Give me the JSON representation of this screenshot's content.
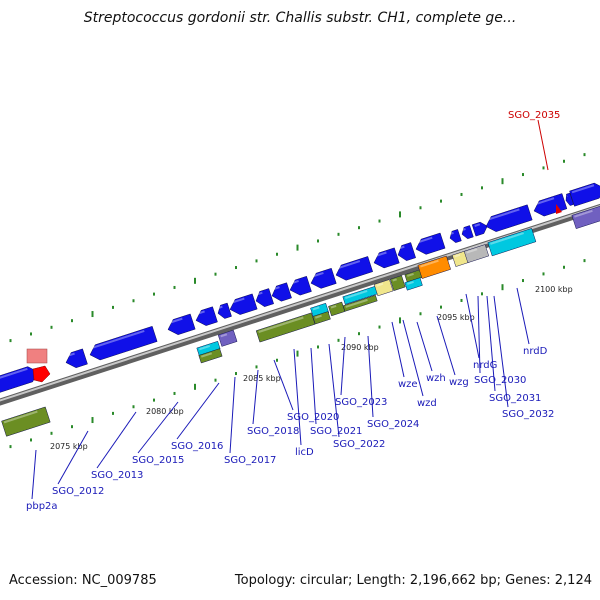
{
  "title": "Streptococcus gordonii str. Challis substr. CH1, complete ge...",
  "footer": {
    "accession": "Accession: NC_009785",
    "summary": "Topology: circular; Length: 2,196,662 bp; Genes: 2,124"
  },
  "scale": [
    "2075 kbp",
    "2080 kbp",
    "2085 kbp",
    "2090 kbp",
    "2095 kbp",
    "2100 kbp"
  ],
  "genes": [
    "pbp2a",
    "SGO_2012",
    "SGO_2013",
    "SGO_2015",
    "SGO_2016",
    "SGO_2017",
    "SGO_2018",
    "licD",
    "SGO_2020",
    "SGO_2021",
    "SGO_2022",
    "SGO_2023",
    "SGO_2024",
    "wze",
    "wzd",
    "wzh",
    "wzg",
    "nrdG",
    "SGO_2030",
    "SGO_2031",
    "SGO_2032",
    "nrdD",
    "SGO_2035"
  ],
  "colors": {
    "cds": "#1010e8",
    "backbone": "#909090",
    "label": "#1a1ab8",
    "highlight_label": "#cc0000",
    "olive": "#6b8e23",
    "cyan": "#00c8e0",
    "orange": "#ff8c00",
    "purple": "#7060c0",
    "khaki": "#f0e68c",
    "pink": "#f08080",
    "red": "#ff0000"
  }
}
